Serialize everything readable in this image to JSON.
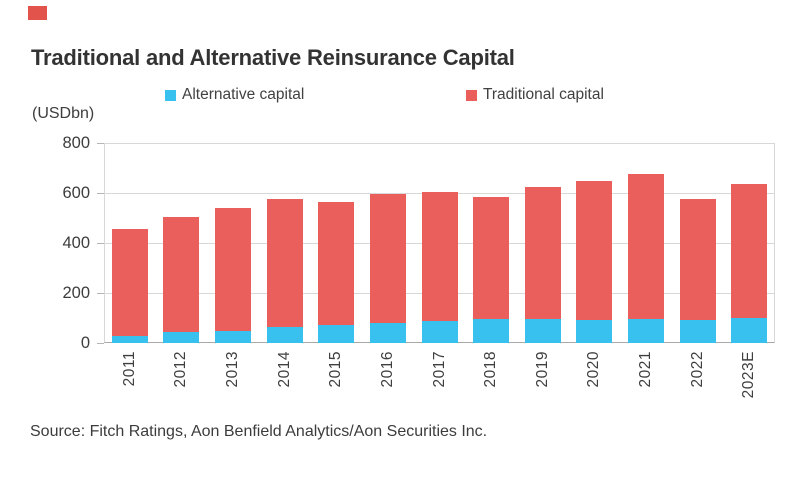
{
  "corner_marker_color": "#e2544b",
  "header": {
    "title": "Traditional and Alternative Reinsurance Capital"
  },
  "axis_unit": "(USDbn)",
  "legend": [
    {
      "label": "Alternative capital",
      "color": "#38c1ee"
    },
    {
      "label": "Traditional capital",
      "color": "#ea5e5c"
    }
  ],
  "source": "Source: Fitch Ratings, Aon Benfield Analytics/Aon Securities Inc.",
  "chart_data": {
    "type": "bar",
    "stacked": true,
    "title": "Traditional and Alternative Reinsurance Capital",
    "ylabel": "(USDbn)",
    "xlabel": "",
    "ylim": [
      0,
      800
    ],
    "yticks": [
      0,
      200,
      400,
      600,
      800
    ],
    "grid": true,
    "legend_position": "top",
    "x_label_rotation_deg": 90,
    "categories": [
      "2011",
      "2012",
      "2013",
      "2014",
      "2015",
      "2016",
      "2017",
      "2018",
      "2019",
      "2020",
      "2021",
      "2022",
      "2023E"
    ],
    "series": [
      {
        "name": "Alternative capital",
        "color": "#38c1ee",
        "values": [
          28,
          44,
          50,
          64,
          72,
          81,
          89,
          97,
          95,
          94,
          97,
          93,
          100
        ]
      },
      {
        "name": "Traditional capital",
        "color": "#ea5e5c",
        "values": [
          427,
          461,
          490,
          511,
          493,
          514,
          516,
          488,
          530,
          556,
          578,
          482,
          538
        ]
      }
    ],
    "totals": [
      455,
      505,
      540,
      575,
      565,
      595,
      605,
      585,
      625,
      650,
      675,
      575,
      638
    ]
  }
}
